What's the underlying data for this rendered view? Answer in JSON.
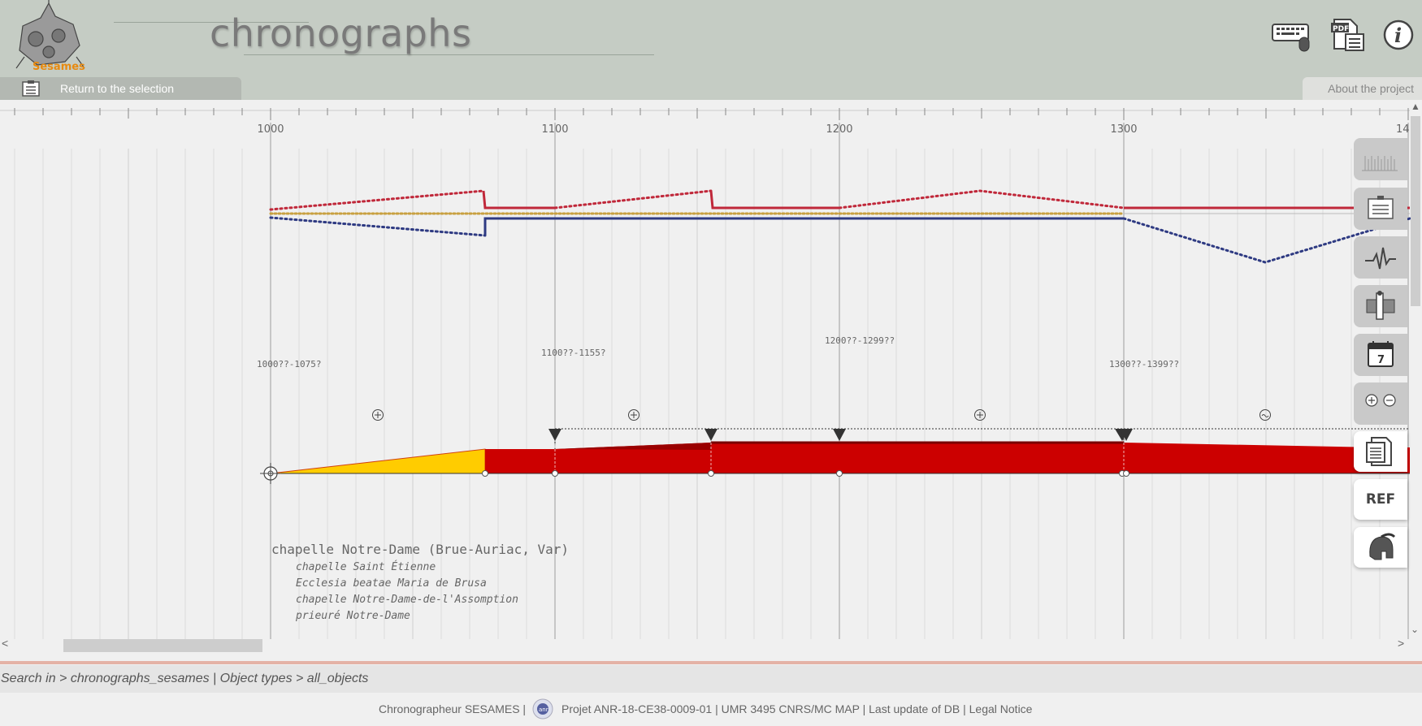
{
  "header": {
    "logo_text": "Sesames",
    "app_title": "chronographs"
  },
  "icons": {
    "keyboard": "keyboard-mouse-icon",
    "pdf": "pdf-icon",
    "info": "info-icon",
    "return": "list-icon"
  },
  "nav": {
    "return_label": "Return to the selection",
    "about_label": "About the project"
  },
  "timeline": {
    "ruler_labels": [
      "1000",
      "1100",
      "1200",
      "1300",
      "14"
    ],
    "period_labels": [
      "1000??-1075?",
      "1100??-1155?",
      "1200??-1299??",
      "1300??-1399??"
    ],
    "site": {
      "name": "chapelle Notre-Dame (Brue-Auriac, Var)",
      "aliases": [
        "chapelle Saint Étienne",
        "Ecclesia beatae Maria de Brusa",
        "chapelle Notre-Dame-de-l'Assomption",
        "prieuré Notre-Dame"
      ]
    }
  },
  "side_toolbar": {
    "ref_label": "REF",
    "calendar_day": "7"
  },
  "breadcrumb": "Search in > chronographs_sesames | Object types > all_objects",
  "footer": {
    "part1": "Chronographeur SESAMES |",
    "part2": "Projet ANR-18-CE38-0009-01 | UMR 3495 CNRS/MC MAP | Last update of DB | Legal Notice"
  },
  "colors": {
    "header_bg": "#c5ccc4",
    "red": "#cc0000",
    "yellow": "#ffcc00",
    "blue": "#2e3a82",
    "gold_dots": "#c8a040"
  }
}
